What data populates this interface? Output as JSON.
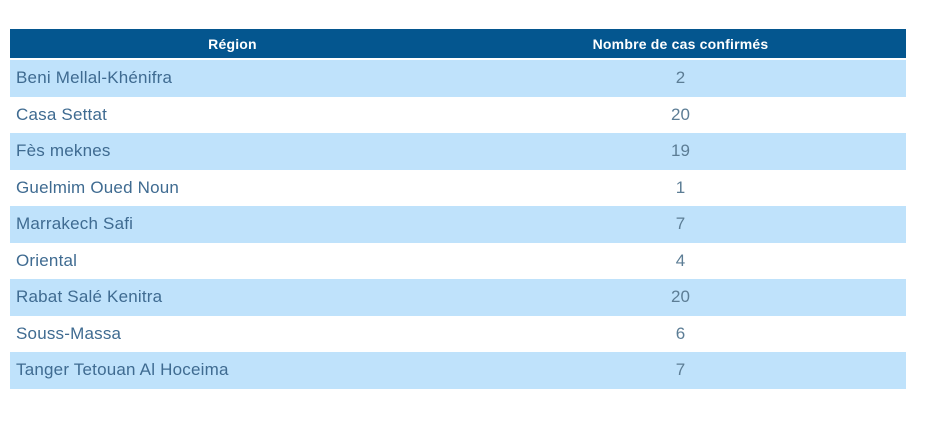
{
  "table": {
    "columns": [
      {
        "label": "Région"
      },
      {
        "label": "Nombre de cas confirmés"
      }
    ],
    "rows": [
      {
        "region": "Beni Mellal-Khénifra",
        "cases": "2"
      },
      {
        "region": "Casa Settat",
        "cases": "20"
      },
      {
        "region": "Fès meknes",
        "cases": "19"
      },
      {
        "region": "Guelmim Oued Noun",
        "cases": "1"
      },
      {
        "region": "Marrakech Safi",
        "cases": "7"
      },
      {
        "region": "Oriental",
        "cases": "4"
      },
      {
        "region": "Rabat Salé Kenitra",
        "cases": "20"
      },
      {
        "region": "Souss-Massa",
        "cases": "6"
      },
      {
        "region": "Tanger Tetouan Al Hoceima",
        "cases": "7"
      }
    ]
  },
  "colors": {
    "header_bg": "#04568f",
    "header_text": "#ffffff",
    "row_bg": "#ffffff",
    "row_alt_bg": "#bfe2fb",
    "region_text": "#3f6b91",
    "value_text": "#5c7d95"
  },
  "chart_data": {
    "type": "table",
    "title": "",
    "columns": [
      "Région",
      "Nombre de cas confirmés"
    ],
    "rows": [
      [
        "Beni Mellal-Khénifra",
        2
      ],
      [
        "Casa Settat",
        20
      ],
      [
        "Fès meknes",
        19
      ],
      [
        "Guelmim Oued Noun",
        1
      ],
      [
        "Marrakech Safi",
        7
      ],
      [
        "Oriental",
        4
      ],
      [
        "Rabat Salé Kenitra",
        20
      ],
      [
        "Souss-Massa",
        6
      ],
      [
        "Tanger Tetouan Al Hoceima",
        7
      ]
    ],
    "layout_hints": {
      "striped": true,
      "stripe_color": "#bfe2fb",
      "header_color": "#04568f",
      "region_column_align": "left",
      "cases_column_align": "center"
    }
  }
}
